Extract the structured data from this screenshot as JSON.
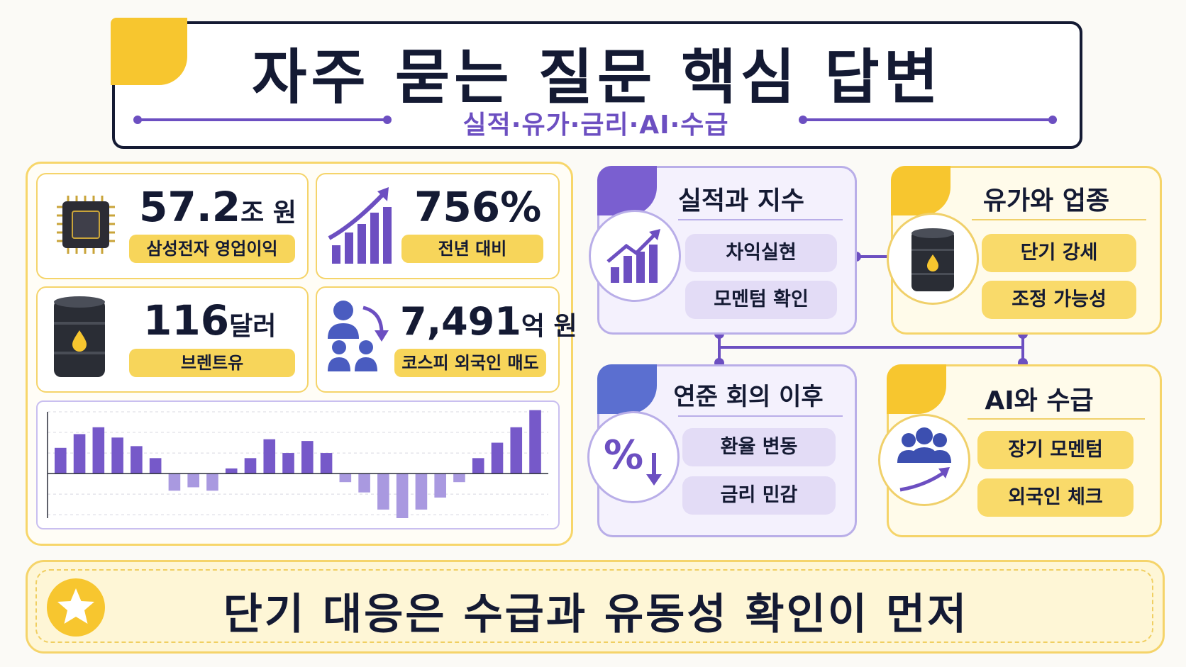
{
  "header": {
    "title": "자주 묻는 질문 핵심 답변",
    "subtitle": "실적·유가·금리·AI·수급"
  },
  "stats": [
    {
      "value": "57.2",
      "unit": "조 원",
      "label": "삼성전자 영업이익",
      "icon": "chip-icon"
    },
    {
      "value": "756%",
      "unit": "",
      "label": "전년 대비",
      "icon": "growth-chart-icon"
    },
    {
      "value": "116",
      "unit": "달러",
      "label": "브렌트유",
      "icon": "oil-barrel-icon"
    },
    {
      "value": "7,491",
      "unit": "억 원",
      "label": "코스피 외국인 매도",
      "icon": "investors-outflow-icon"
    }
  ],
  "chart_data": {
    "type": "bar",
    "title": "",
    "xlabel": "",
    "ylabel": "",
    "ylim": [
      -1.3,
      1.8
    ],
    "grid": true,
    "values": [
      0.75,
      1.15,
      1.35,
      1.05,
      0.8,
      0.45,
      -0.5,
      -0.4,
      -0.5,
      0.15,
      0.45,
      1.0,
      0.6,
      0.95,
      0.6,
      -0.25,
      -0.55,
      -1.05,
      -1.3,
      -1.05,
      -0.7,
      -0.25,
      0.45,
      0.9,
      1.35,
      1.85
    ]
  },
  "cards": [
    {
      "title": "실적과 지수",
      "items": [
        "차익실현",
        "모멘텀 확인"
      ],
      "icon": "growth-chart-icon",
      "theme": "purple"
    },
    {
      "title": "유가와 업종",
      "items": [
        "단기 강세",
        "조정 가능성"
      ],
      "icon": "oil-barrel-icon",
      "theme": "yellow"
    },
    {
      "title": "연준 회의 이후",
      "items": [
        "환율 변동",
        "금리 민감"
      ],
      "icon": "percent-down-icon",
      "theme": "purple"
    },
    {
      "title": "AI와 수급",
      "items": [
        "장기 모멘텀",
        "외국인 체크"
      ],
      "icon": "people-growth-icon",
      "theme": "yellow"
    }
  ],
  "banner": {
    "text": "단기 대응은 수급과 유동성 확인이 먼저",
    "icon": "star-icon"
  },
  "colors": {
    "navy": "#141a33",
    "purple": "#6c4fc1",
    "yellow": "#f7c62f",
    "lavender": "#e3dcf6"
  }
}
